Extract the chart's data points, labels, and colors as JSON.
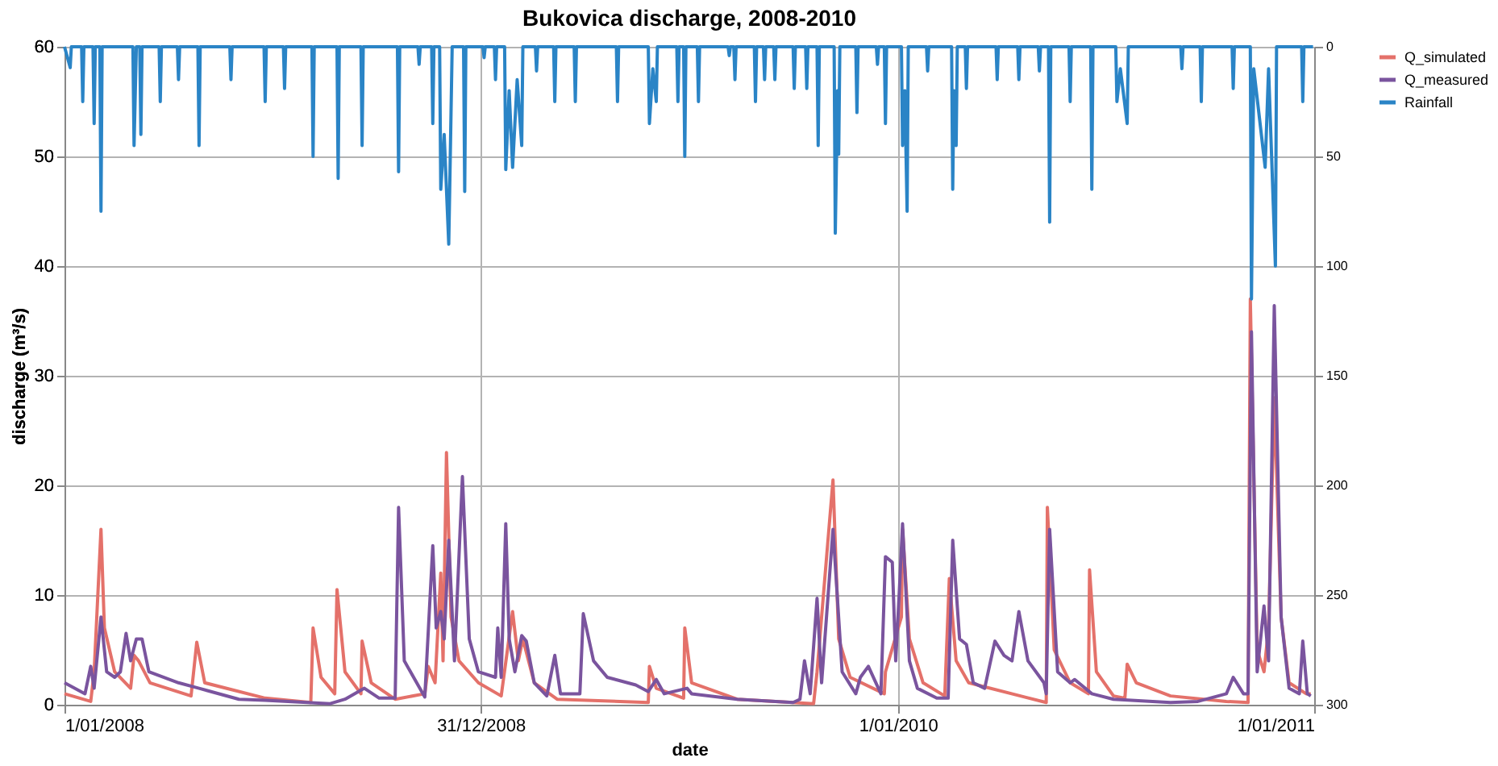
{
  "chart_data": {
    "type": "line",
    "title": "Bukovica discharge, 2008-2010",
    "xlabel": "date",
    "ylabel": "discharge (m³/s)",
    "xlim": [
      "2008-01-01",
      "2011-01-01"
    ],
    "xticks": [
      {
        "value": "2008-01-01",
        "label": "1/01/2008"
      },
      {
        "value": "2008-12-31",
        "label": "31/12/2008"
      },
      {
        "value": "2010-01-01",
        "label": "1/01/2010"
      },
      {
        "value": "2011-01-01",
        "label": "1/01/2011"
      }
    ],
    "ylim": [
      0,
      60
    ],
    "yticks": [
      0,
      10,
      20,
      30,
      40,
      50,
      60
    ],
    "y2lim": [
      300,
      0
    ],
    "y2ticks": [
      0,
      50,
      100,
      150,
      200,
      250,
      300
    ],
    "grid": true,
    "legend": "right",
    "series": [
      {
        "name": "Q_simulated",
        "color": "#e4716a",
        "x": [
          "2008-01-01",
          "2008-01-24",
          "2008-01-27",
          "2008-02-02",
          "2008-02-05",
          "2008-02-14",
          "2008-02-28",
          "2008-03-02",
          "2008-03-06",
          "2008-03-16",
          "2008-04-21",
          "2008-04-26",
          "2008-05-03",
          "2008-06-25",
          "2008-08-04",
          "2008-08-06",
          "2008-08-13",
          "2008-08-25",
          "2008-08-27",
          "2008-09-03",
          "2008-09-17",
          "2008-09-18",
          "2008-09-26",
          "2008-10-17",
          "2008-11-12",
          "2008-11-15",
          "2008-11-21",
          "2008-11-26",
          "2008-11-28",
          "2008-12-01",
          "2008-12-05",
          "2008-12-12",
          "2008-12-29",
          "2009-01-18",
          "2009-01-28",
          "2009-02-02",
          "2009-02-06",
          "2009-02-16",
          "2009-03-08",
          "2009-05-27",
          "2009-05-28",
          "2009-06-03",
          "2009-06-27",
          "2009-06-28",
          "2009-07-04",
          "2009-08-13",
          "2009-10-19",
          "2009-10-22",
          "2009-11-05",
          "2009-11-10",
          "2009-11-20",
          "2009-12-20",
          "2009-12-21",
          "2010-01-04",
          "2010-01-05",
          "2010-01-11",
          "2010-01-23",
          "2010-02-11",
          "2010-02-15",
          "2010-02-21",
          "2010-03-04",
          "2010-05-11",
          "2010-05-12",
          "2010-05-18",
          "2010-06-01",
          "2010-06-17",
          "2010-06-18",
          "2010-06-24",
          "2010-07-09",
          "2010-07-19",
          "2010-07-21",
          "2010-07-29",
          "2010-08-28",
          "2010-10-16",
          "2010-11-04",
          "2010-11-06",
          "2010-11-12",
          "2010-11-18",
          "2010-11-22",
          "2010-11-27",
          "2010-12-03",
          "2010-12-10",
          "2010-12-25",
          "2010-12-29"
        ],
        "values": [
          1.0,
          0.3,
          3,
          16,
          7,
          3,
          1.5,
          4.5,
          4,
          2,
          0.8,
          5.7,
          2,
          0.6,
          0.2,
          7,
          2.5,
          1,
          10.5,
          3,
          1,
          5.8,
          2,
          0.5,
          1,
          3.5,
          2,
          12,
          4,
          23,
          8,
          4,
          2,
          0.8,
          8.5,
          4,
          6,
          2,
          0.5,
          0.2,
          3.5,
          1.5,
          0.6,
          7,
          2,
          0.5,
          0.1,
          3,
          20.5,
          6,
          2.5,
          1,
          3,
          8,
          16,
          6,
          2,
          0.8,
          11.5,
          4,
          2,
          0.2,
          18,
          5,
          2,
          1,
          12.3,
          3,
          0.8,
          0.6,
          3.7,
          2,
          0.8,
          0.3,
          0.2,
          37,
          5,
          3,
          7,
          28,
          8,
          2,
          1,
          1
        ]
      },
      {
        "name": "Q_measured",
        "color": "#7a549e",
        "x": [
          "2008-01-01",
          "2008-01-19",
          "2008-01-24",
          "2008-01-27",
          "2008-02-02",
          "2008-02-07",
          "2008-02-14",
          "2008-02-19",
          "2008-02-24",
          "2008-02-28",
          "2008-03-04",
          "2008-03-09",
          "2008-03-15",
          "2008-04-10",
          "2008-04-28",
          "2008-06-02",
          "2008-06-25",
          "2008-08-21",
          "2008-09-03",
          "2008-09-20",
          "2008-10-03",
          "2008-10-17",
          "2008-10-20",
          "2008-10-25",
          "2008-11-12",
          "2008-11-19",
          "2008-11-22",
          "2008-11-26",
          "2008-11-29",
          "2008-12-03",
          "2008-12-08",
          "2008-12-15",
          "2008-12-21",
          "2008-12-29",
          "2009-01-13",
          "2009-01-15",
          "2009-01-18",
          "2009-01-22",
          "2009-01-25",
          "2009-01-30",
          "2009-02-05",
          "2009-02-09",
          "2009-02-16",
          "2009-02-27",
          "2009-03-06",
          "2009-03-11",
          "2009-03-28",
          "2009-03-31",
          "2009-04-09",
          "2009-04-21",
          "2009-05-16",
          "2009-05-27",
          "2009-06-03",
          "2009-06-10",
          "2009-06-30",
          "2009-07-04",
          "2009-08-13",
          "2009-10-01",
          "2009-10-07",
          "2009-10-11",
          "2009-10-16",
          "2009-10-22",
          "2009-10-26",
          "2009-11-05",
          "2009-11-13",
          "2009-11-25",
          "2009-11-29",
          "2009-12-06",
          "2009-12-17",
          "2009-12-21",
          "2009-12-27",
          "2009-12-30",
          "2010-01-02",
          "2010-01-05",
          "2010-01-11",
          "2010-01-18",
          "2010-02-04",
          "2010-02-14",
          "2010-02-18",
          "2010-02-24",
          "2010-03-02",
          "2010-03-08",
          "2010-03-18",
          "2010-03-27",
          "2010-04-04",
          "2010-04-11",
          "2010-04-17",
          "2010-04-25",
          "2010-05-09",
          "2010-05-11",
          "2010-05-14",
          "2010-05-21",
          "2010-06-01",
          "2010-06-05",
          "2010-06-20",
          "2010-07-09",
          "2010-08-28",
          "2010-09-21",
          "2010-10-16",
          "2010-10-22",
          "2010-10-31",
          "2010-11-04",
          "2010-11-07",
          "2010-11-12",
          "2010-11-18",
          "2010-11-22",
          "2010-11-27",
          "2010-12-03",
          "2010-12-10",
          "2010-12-19",
          "2010-12-22",
          "2010-12-26",
          "2010-12-29"
        ],
        "values": [
          2,
          1,
          3.5,
          1.5,
          8,
          3,
          2.5,
          3,
          6.5,
          4,
          6,
          6,
          3,
          2,
          1.5,
          0.5,
          0.4,
          0.1,
          0.5,
          1.5,
          0.6,
          0.6,
          18,
          4,
          0.7,
          14.5,
          7,
          8.5,
          6,
          15,
          4,
          20.8,
          6,
          3,
          2.5,
          7,
          2.5,
          16.5,
          6,
          3,
          6.3,
          5.8,
          2,
          0.8,
          4.5,
          1,
          1,
          8.3,
          4,
          2.5,
          1.8,
          1.2,
          2.3,
          1,
          1.5,
          1,
          0.5,
          0.2,
          0.5,
          4,
          1,
          9.7,
          2,
          16,
          3,
          1,
          2.5,
          3.5,
          1,
          13.5,
          13,
          4,
          10,
          16.5,
          4,
          1.5,
          0.6,
          0.6,
          15,
          6,
          5.5,
          2,
          1.5,
          5.8,
          4.5,
          4,
          8.5,
          4,
          2,
          1,
          16,
          3,
          2,
          2.3,
          1,
          0.5,
          0.2,
          0.3,
          1,
          2.5,
          1,
          1,
          34,
          3,
          9,
          4,
          36.4,
          8,
          1.5,
          1,
          5.8,
          1,
          0.8
        ]
      },
      {
        "name": "Rainfall",
        "color": "#2a84c6",
        "axis": "y2",
        "x": [
          "2008-01-01",
          "2008-01-06",
          "2008-01-07",
          "2008-01-16",
          "2008-01-17",
          "2008-01-18",
          "2008-01-26",
          "2008-01-27",
          "2008-01-28",
          "2008-02-01",
          "2008-02-02",
          "2008-02-03",
          "2008-03-01",
          "2008-03-02",
          "2008-03-04",
          "2008-03-07",
          "2008-03-08",
          "2008-03-09",
          "2008-03-24",
          "2008-03-25",
          "2008-03-26",
          "2008-04-09",
          "2008-04-10",
          "2008-04-11",
          "2008-04-27",
          "2008-04-28",
          "2008-04-29",
          "2008-05-25",
          "2008-05-26",
          "2008-05-27",
          "2008-06-24",
          "2008-06-25",
          "2008-06-26",
          "2008-07-11",
          "2008-07-12",
          "2008-07-13",
          "2008-08-05",
          "2008-08-06",
          "2008-08-07",
          "2008-08-27",
          "2008-08-28",
          "2008-08-29",
          "2008-09-17",
          "2008-09-18",
          "2008-09-19",
          "2008-10-19",
          "2008-10-20",
          "2008-10-21",
          "2008-11-06",
          "2008-11-07",
          "2008-11-08",
          "2008-11-18",
          "2008-11-19",
          "2008-11-20",
          "2008-11-25",
          "2008-11-26",
          "2008-11-29",
          "2008-12-03",
          "2008-12-05",
          "2008-12-06",
          "2008-12-16",
          "2008-12-17",
          "2008-12-18",
          "2009-01-02",
          "2009-01-03",
          "2009-01-04",
          "2009-01-12",
          "2009-01-13",
          "2009-01-14",
          "2009-01-21",
          "2009-01-22",
          "2009-01-25",
          "2009-01-28",
          "2009-02-01",
          "2009-02-05",
          "2009-02-06",
          "2009-02-17",
          "2009-02-18",
          "2009-02-19",
          "2009-03-05",
          "2009-03-06",
          "2009-03-07",
          "2009-03-23",
          "2009-03-24",
          "2009-03-25",
          "2009-04-29",
          "2009-04-30",
          "2009-05-01",
          "2009-05-27",
          "2009-05-28",
          "2009-05-31",
          "2009-06-03",
          "2009-06-04",
          "2009-06-21",
          "2009-06-22",
          "2009-06-23",
          "2009-06-27",
          "2009-06-28",
          "2009-06-29",
          "2009-07-09",
          "2009-07-10",
          "2009-07-11",
          "2009-08-05",
          "2009-08-06",
          "2009-08-07",
          "2009-08-10",
          "2009-08-11",
          "2009-08-12",
          "2009-08-28",
          "2009-08-29",
          "2009-08-30",
          "2009-09-05",
          "2009-09-06",
          "2009-09-07",
          "2009-09-14",
          "2009-09-15",
          "2009-09-16",
          "2009-10-01",
          "2009-10-02",
          "2009-10-03",
          "2009-10-12",
          "2009-10-13",
          "2009-10-14",
          "2009-10-22",
          "2009-10-23",
          "2009-10-24",
          "2009-11-06",
          "2009-11-07",
          "2009-11-09",
          "2009-11-10",
          "2009-11-11",
          "2009-11-25",
          "2009-11-26",
          "2009-11-27",
          "2009-12-13",
          "2009-12-14",
          "2009-12-15",
          "2009-12-20",
          "2009-12-21",
          "2009-12-22",
          "2010-01-04",
          "2010-01-05",
          "2010-01-07",
          "2010-01-09",
          "2010-01-10",
          "2010-01-26",
          "2010-01-27",
          "2010-01-28",
          "2010-02-17",
          "2010-02-18",
          "2010-02-19",
          "2010-02-21",
          "2010-02-22",
          "2010-03-01",
          "2010-03-02",
          "2010-03-03",
          "2010-03-28",
          "2010-03-29",
          "2010-03-30",
          "2010-04-16",
          "2010-04-17",
          "2010-04-18",
          "2010-05-04",
          "2010-05-05",
          "2010-05-06",
          "2010-05-13",
          "2010-05-14",
          "2010-05-15",
          "2010-05-31",
          "2010-06-01",
          "2010-06-02",
          "2010-06-19",
          "2010-06-20",
          "2010-06-21",
          "2010-07-11",
          "2010-07-12",
          "2010-07-15",
          "2010-07-21",
          "2010-07-22",
          "2010-09-06",
          "2010-09-07",
          "2010-09-08",
          "2010-09-23",
          "2010-09-24",
          "2010-09-25",
          "2010-10-21",
          "2010-10-22",
          "2010-10-23",
          "2010-11-06",
          "2010-11-07",
          "2010-11-09",
          "2010-11-19",
          "2010-11-22",
          "2010-11-28",
          "2010-11-29",
          "2010-12-21",
          "2010-12-22",
          "2010-12-23",
          "2010-12-31"
        ],
        "values": [
          0,
          9.5,
          0,
          0,
          25,
          0,
          0,
          35,
          0,
          0,
          75,
          0,
          0,
          45,
          0,
          0,
          40,
          0,
          0,
          25,
          0,
          0,
          15,
          0,
          0,
          45,
          0,
          0,
          15,
          0,
          0,
          25,
          0,
          0,
          19,
          0,
          0,
          50,
          0,
          0,
          60,
          0,
          0,
          45,
          0,
          0,
          57,
          0,
          0,
          8,
          0,
          0,
          35,
          0,
          0,
          65,
          40,
          90,
          30,
          0,
          0,
          66,
          0,
          0,
          5,
          0,
          0,
          15,
          0,
          0,
          56,
          20,
          55,
          15,
          45,
          0,
          0,
          11,
          0,
          0,
          25,
          0,
          0,
          25,
          0,
          0,
          25,
          0,
          0,
          35,
          10,
          25,
          0,
          0,
          25,
          0,
          0,
          50,
          0,
          0,
          25,
          0,
          0,
          4,
          0,
          0,
          15,
          0,
          0,
          25,
          0,
          0,
          15,
          0,
          0,
          15,
          0,
          0,
          19,
          0,
          0,
          19,
          0,
          0,
          45,
          0,
          0,
          85,
          20,
          49,
          0,
          0,
          30,
          0,
          0,
          8,
          0,
          0,
          35,
          0,
          0,
          45,
          20,
          75,
          0,
          0,
          11,
          0,
          0,
          65,
          20,
          45,
          0,
          0,
          19,
          0,
          0,
          15,
          0,
          0,
          15,
          0,
          0,
          11,
          0,
          0,
          80,
          0,
          0,
          25,
          0,
          0,
          65,
          0,
          0,
          25,
          10,
          35,
          0,
          0,
          10,
          0,
          0,
          25,
          0,
          0,
          19,
          0,
          0,
          115,
          10,
          55,
          10,
          100,
          0,
          0,
          25,
          0,
          0
        ]
      }
    ]
  }
}
